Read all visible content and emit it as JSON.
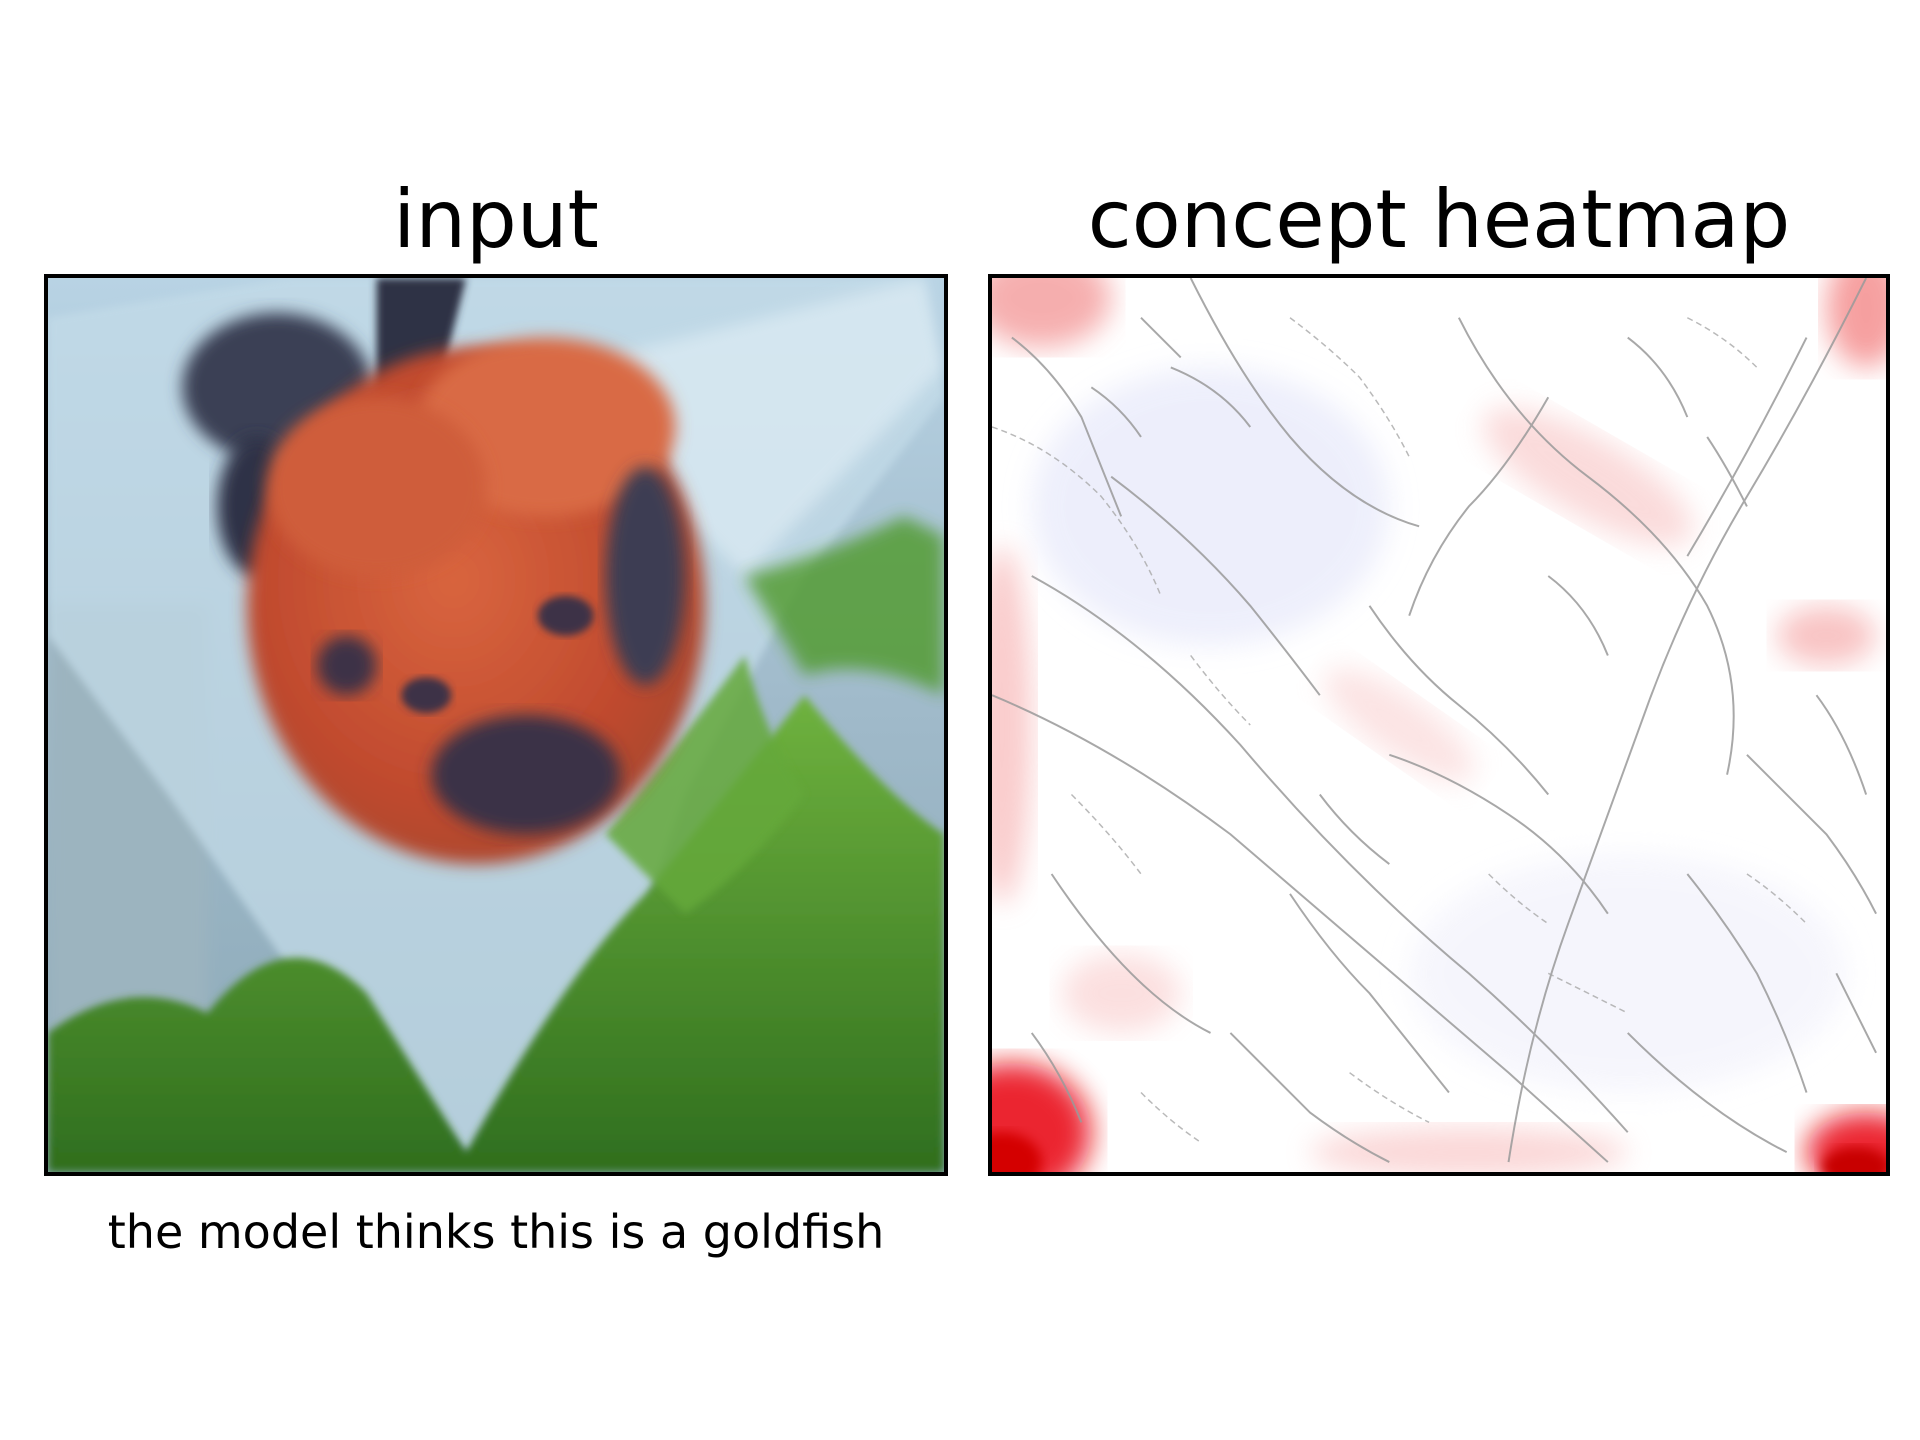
{
  "panels": {
    "left_title": "input",
    "right_title": "concept heatmap"
  },
  "caption": "the model thinks this is a goldfish",
  "colors": {
    "heatmap_red": "#e8000b",
    "outline_gray": "#9a9a9a",
    "fish_orange": "#c8553a",
    "plant_green": "#5aa632",
    "water_blue": "#a9c6d8"
  }
}
